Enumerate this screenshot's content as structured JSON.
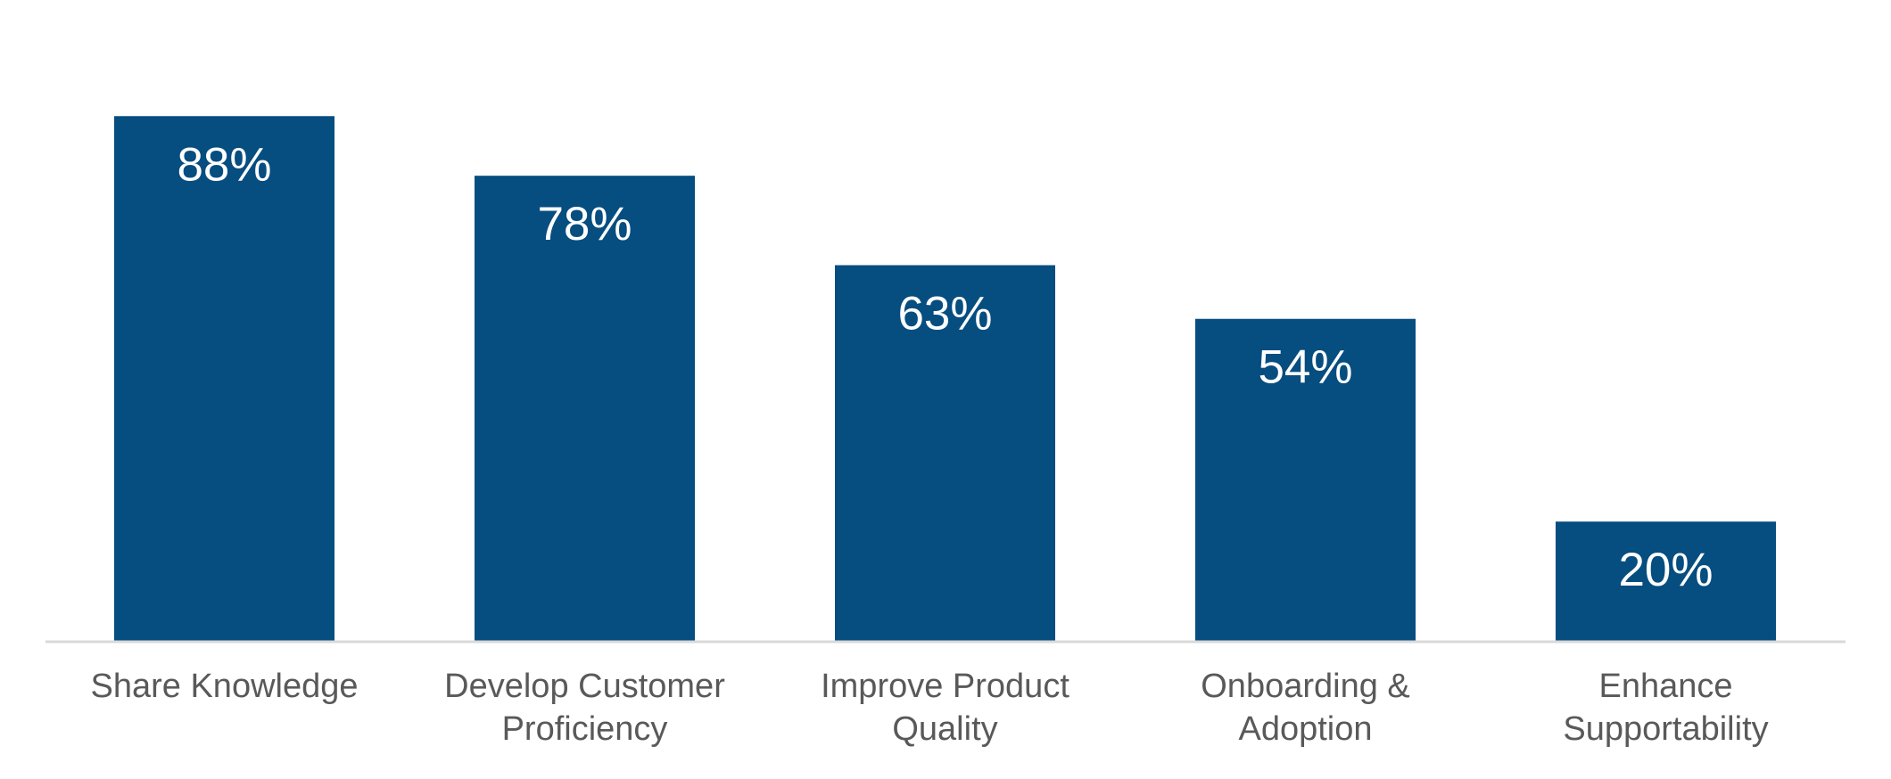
{
  "chart_data": {
    "type": "bar",
    "categories": [
      [
        "Share Knowledge"
      ],
      [
        "Develop Customer",
        "Proficiency"
      ],
      [
        "Improve Product",
        "Quality"
      ],
      [
        "Onboarding &",
        "Adoption"
      ],
      [
        "Enhance",
        "Supportability"
      ]
    ],
    "values": [
      88,
      78,
      63,
      54,
      20
    ],
    "data_labels": [
      "88%",
      "78%",
      "63%",
      "54%",
      "20%"
    ],
    "unit": "%",
    "ylim": [
      0,
      100
    ],
    "grid": false,
    "legend": "none",
    "title": "",
    "xlabel": "",
    "ylabel": ""
  },
  "colors": {
    "bar": "#064d80",
    "data_label": "#ffffff",
    "category_label": "#595959",
    "axis_line": "#d9d9d9"
  }
}
